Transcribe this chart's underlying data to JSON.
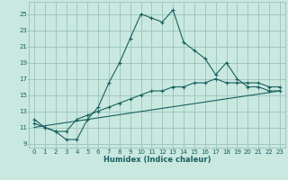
{
  "title": "",
  "xlabel": "Humidex (Indice chaleur)",
  "ylabel": "",
  "bg_color": "#c8e8e0",
  "grid_color": "#a0c8c0",
  "line_color": "#1a6060",
  "xlim": [
    -0.5,
    23.5
  ],
  "ylim": [
    8.5,
    26.5
  ],
  "xticks": [
    0,
    1,
    2,
    3,
    4,
    5,
    6,
    7,
    8,
    9,
    10,
    11,
    12,
    13,
    14,
    15,
    16,
    17,
    18,
    19,
    20,
    21,
    22,
    23
  ],
  "yticks": [
    9,
    11,
    13,
    15,
    17,
    19,
    21,
    23,
    25
  ],
  "line1_x": [
    0,
    1,
    2,
    3,
    4,
    5,
    6,
    7,
    8,
    9,
    10,
    11,
    12,
    13,
    14,
    15,
    16,
    17,
    18,
    19,
    20,
    21,
    22,
    23
  ],
  "line1_y": [
    12.0,
    11.0,
    10.5,
    9.5,
    9.5,
    12.0,
    13.5,
    16.5,
    19.0,
    22.0,
    25.0,
    24.5,
    24.0,
    25.5,
    21.5,
    20.5,
    19.5,
    17.5,
    19.0,
    17.0,
    16.0,
    16.0,
    15.5,
    15.5
  ],
  "line2_x": [
    0,
    1,
    2,
    3,
    4,
    5,
    6,
    7,
    8,
    9,
    10,
    11,
    12,
    13,
    14,
    15,
    16,
    17,
    18,
    19,
    20,
    21,
    22,
    23
  ],
  "line2_y": [
    11.5,
    11.0,
    10.5,
    10.5,
    12.0,
    12.5,
    13.0,
    13.5,
    14.0,
    14.5,
    15.0,
    15.5,
    15.5,
    16.0,
    16.0,
    16.5,
    16.5,
    17.0,
    16.5,
    16.5,
    16.5,
    16.5,
    16.0,
    16.0
  ],
  "line3_x": [
    0,
    23
  ],
  "line3_y": [
    11.0,
    15.5
  ]
}
